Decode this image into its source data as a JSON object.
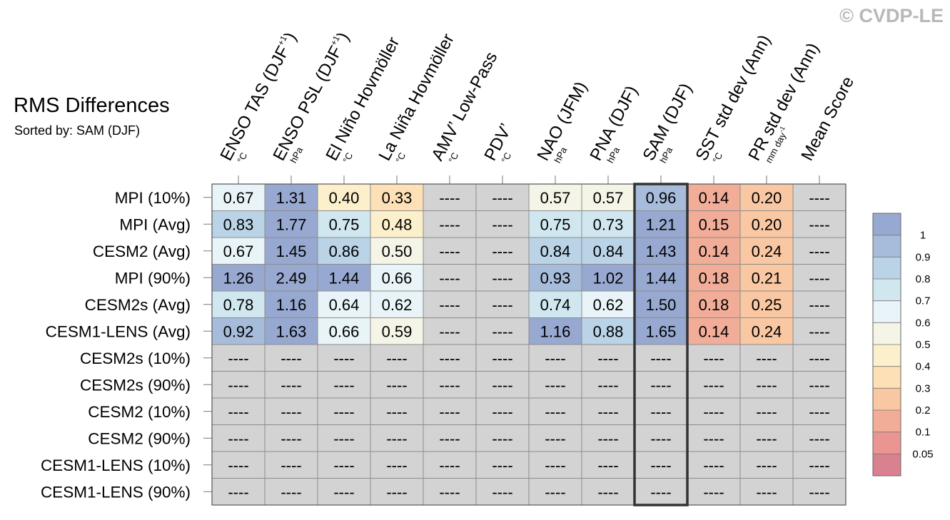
{
  "watermark": "© CVDP-LE",
  "chart_data": {
    "type": "heatmap",
    "title": "RMS Differences",
    "subtitle": "Sorted by: SAM (DJF)",
    "columns": [
      {
        "label": "ENSO TAS (DJF",
        "sup": "+1",
        "suffix": ")",
        "unit": "°C"
      },
      {
        "label": "ENSO PSL (DJF",
        "sup": "+1",
        "suffix": ")",
        "unit": "hPa"
      },
      {
        "label": "El Niño Hovmöller",
        "sup": "",
        "suffix": "",
        "unit": "°C"
      },
      {
        "label": "La Niña Hovmöller",
        "sup": "",
        "suffix": "",
        "unit": "°C"
      },
      {
        "label": "AMV’ Low-Pass",
        "sup": "",
        "suffix": "",
        "unit": "°C"
      },
      {
        "label": "PDV’",
        "sup": "",
        "suffix": "",
        "unit": "°C"
      },
      {
        "label": "NAO (JFM)",
        "sup": "",
        "suffix": "",
        "unit": "hPa"
      },
      {
        "label": "PNA (DJF)",
        "sup": "",
        "suffix": "",
        "unit": "hPa"
      },
      {
        "label": "SAM (DJF)",
        "sup": "",
        "suffix": "",
        "unit": "hPa"
      },
      {
        "label": "SST std dev (Ann)",
        "sup": "",
        "suffix": "",
        "unit": "°C"
      },
      {
        "label": "PR std dev (Ann)",
        "sup": "",
        "suffix": "",
        "unit": "mm day",
        "unit_sup": "-1"
      },
      {
        "label": "Mean Score",
        "sup": "",
        "suffix": "",
        "unit": ""
      }
    ],
    "sorted_column_index": 8,
    "rows": [
      "MPI (10%)",
      "MPI (Avg)",
      "CESM2 (Avg)",
      "MPI (90%)",
      "CESM2s (Avg)",
      "CESM1-LENS (Avg)",
      "CESM2s (10%)",
      "CESM2s (90%)",
      "CESM2 (10%)",
      "CESM2 (90%)",
      "CESM1-LENS (10%)",
      "CESM1-LENS (90%)"
    ],
    "missing_label": "----",
    "values": [
      [
        "0.67",
        "1.31",
        "0.40",
        "0.33",
        null,
        null,
        "0.57",
        "0.57",
        "0.96",
        "0.14",
        "0.20",
        null
      ],
      [
        "0.83",
        "1.77",
        "0.75",
        "0.48",
        null,
        null,
        "0.75",
        "0.73",
        "1.21",
        "0.15",
        "0.20",
        null
      ],
      [
        "0.67",
        "1.45",
        "0.86",
        "0.50",
        null,
        null,
        "0.84",
        "0.84",
        "1.43",
        "0.14",
        "0.24",
        null
      ],
      [
        "1.26",
        "2.49",
        "1.44",
        "0.66",
        null,
        null,
        "0.93",
        "1.02",
        "1.44",
        "0.18",
        "0.21",
        null
      ],
      [
        "0.78",
        "1.16",
        "0.64",
        "0.62",
        null,
        null,
        "0.74",
        "0.62",
        "1.50",
        "0.18",
        "0.25",
        null
      ],
      [
        "0.92",
        "1.63",
        "0.66",
        "0.59",
        null,
        null,
        "1.16",
        "0.88",
        "1.65",
        "0.14",
        "0.24",
        null
      ],
      [
        null,
        null,
        null,
        null,
        null,
        null,
        null,
        null,
        null,
        null,
        null,
        null
      ],
      [
        null,
        null,
        null,
        null,
        null,
        null,
        null,
        null,
        null,
        null,
        null,
        null
      ],
      [
        null,
        null,
        null,
        null,
        null,
        null,
        null,
        null,
        null,
        null,
        null,
        null
      ],
      [
        null,
        null,
        null,
        null,
        null,
        null,
        null,
        null,
        null,
        null,
        null,
        null
      ],
      [
        null,
        null,
        null,
        null,
        null,
        null,
        null,
        null,
        null,
        null,
        null,
        null
      ],
      [
        null,
        null,
        null,
        null,
        null,
        null,
        null,
        null,
        null,
        null,
        null,
        null
      ]
    ],
    "colorbar": {
      "ticks": [
        "1",
        "0.9",
        "0.8",
        "0.7",
        "0.6",
        "0.5",
        "0.4",
        "0.3",
        "0.2",
        "0.1",
        "0.05"
      ],
      "colors": [
        "#97a8d1",
        "#a7bcdb",
        "#bad3e6",
        "#d1e7f0",
        "#e8f4f7",
        "#f4f4e7",
        "#fcefcb",
        "#fde0b5",
        "#f9c7a2",
        "#f2ad98",
        "#ea9592",
        "#d9818e"
      ],
      "grid_color": "#d3d3d3",
      "missing_color": "#d3d3d3"
    }
  }
}
